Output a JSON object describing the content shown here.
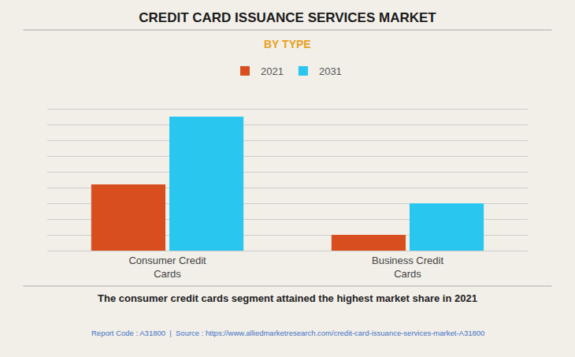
{
  "chart_data": {
    "type": "bar",
    "title": "CREDIT CARD ISSUANCE SERVICES MARKET",
    "subtitle": "BY TYPE",
    "categories": [
      "Consumer Credit\nCards",
      "Business Credit\nCards"
    ],
    "series": [
      {
        "name": "2021",
        "color": "#D94E1F",
        "values": [
          0.42,
          0.1
        ]
      },
      {
        "name": "2031",
        "color": "#29C6F0",
        "values": [
          0.85,
          0.3
        ]
      }
    ],
    "ylim": [
      0,
      1.0
    ],
    "yticks": [
      0,
      0.1,
      0.2,
      0.3,
      0.4,
      0.5,
      0.6,
      0.7,
      0.8,
      0.9,
      1.0
    ],
    "grid": true,
    "legend": "top",
    "tick_labels": "x",
    "annotations": [
      "The consumer credit cards segment attained the highest market share in 2021",
      "Report Code : A31800  |  Source : https://www.alliedmarketresearch.com/credit-card-issuance-services-market-A31800"
    ]
  }
}
